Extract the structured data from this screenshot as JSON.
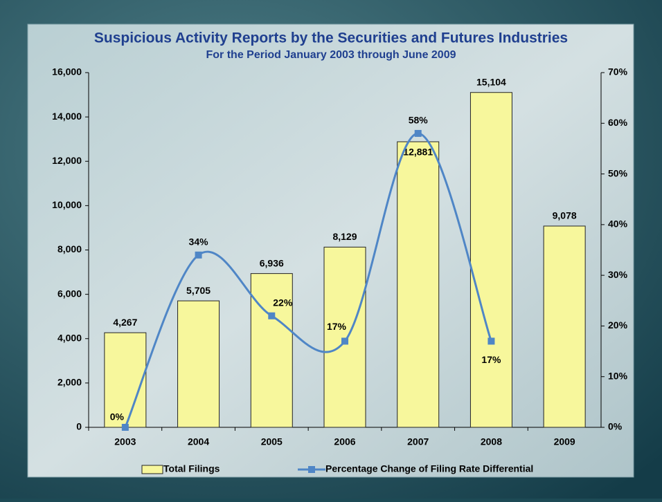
{
  "chart_data": {
    "type": "bar-line",
    "title": "Suspicious Activity Reports by the Securities and Futures Industries",
    "subtitle": "For the Period January 2003 through June 2009",
    "categories": [
      "2003",
      "2004",
      "2005",
      "2006",
      "2007",
      "2008",
      "2009"
    ],
    "series": [
      {
        "name": "Total Filings",
        "type": "bar",
        "color": "#f7f79c",
        "values": [
          4267,
          5705,
          6936,
          8129,
          12881,
          15104,
          9078
        ],
        "value_labels": [
          "4,267",
          "5,705",
          "6,936",
          "8,129",
          "12,881",
          "15,104",
          "9,078"
        ]
      },
      {
        "name": "Percentage Change of Filing Rate Differential",
        "type": "line",
        "axis": "y2",
        "color": "#4f86c6",
        "values": [
          0,
          34,
          22,
          17,
          58,
          17,
          null
        ],
        "value_labels": [
          "0%",
          "34%",
          "22%",
          "17%",
          "58%",
          "17%",
          null
        ]
      }
    ],
    "ylim": [
      0,
      16000
    ],
    "yticks": [
      0,
      {
        "value": 2000,
        "label": "2,000"
      },
      {
        "value": 4000,
        "label": "4,000"
      },
      {
        "value": 6000,
        "label": "6,000"
      },
      {
        "value": 8000,
        "label": "8,000"
      },
      {
        "value": 10000,
        "label": "10,000"
      },
      {
        "value": 12000,
        "label": "12,000"
      },
      {
        "value": 14000,
        "label": "14,000"
      },
      {
        "value": 16000,
        "label": "16,000"
      }
    ],
    "y2lim": [
      0,
      70
    ],
    "y2ticks": [
      {
        "value": 0,
        "label": "0%"
      },
      {
        "value": 10,
        "label": "10%"
      },
      {
        "value": 20,
        "label": "20%"
      },
      {
        "value": 30,
        "label": "30%"
      },
      {
        "value": 40,
        "label": "40%"
      },
      {
        "value": 50,
        "label": "50%"
      },
      {
        "value": 60,
        "label": "60%"
      },
      {
        "value": 70,
        "label": "70%"
      }
    ],
    "legend": "bottom"
  }
}
